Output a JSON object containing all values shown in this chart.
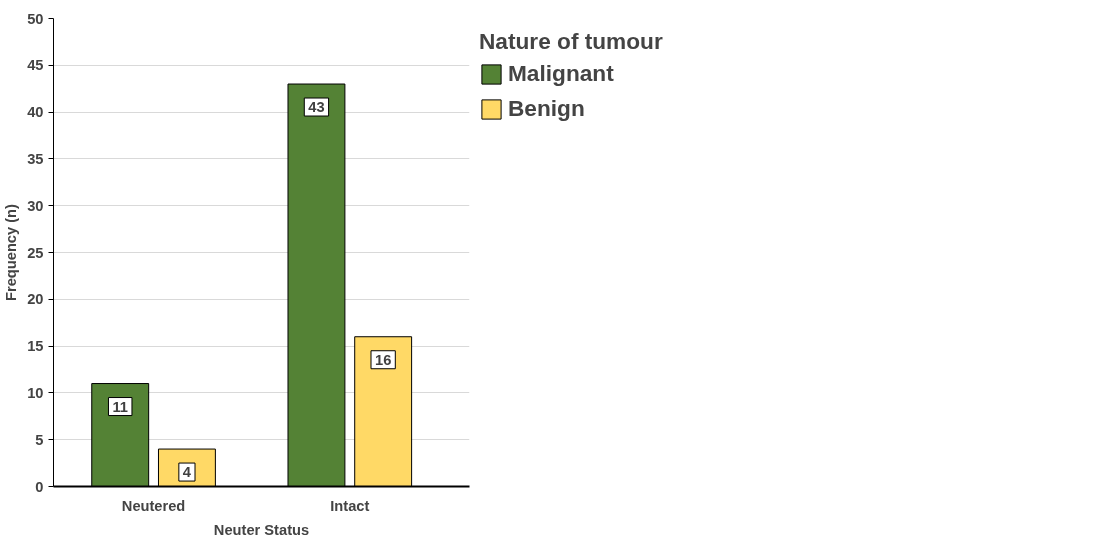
{
  "chart_data": {
    "type": "bar",
    "xlabel": "Neuter Status",
    "ylabel": "Frequency (n)",
    "legend_title": "Nature of tumour",
    "categories": [
      "Neutered",
      "Intact"
    ],
    "series": [
      {
        "name": "Malignant",
        "color": "#548235",
        "values": [
          11,
          43
        ]
      },
      {
        "name": "Benign",
        "color": "#ffd966",
        "values": [
          4,
          16
        ]
      }
    ],
    "ylim": [
      0,
      50
    ],
    "yticks": [
      0,
      5,
      10,
      15,
      20,
      25,
      30,
      35,
      40,
      45,
      50
    ],
    "grid": "y",
    "legend": "top right",
    "data_labels": true
  }
}
